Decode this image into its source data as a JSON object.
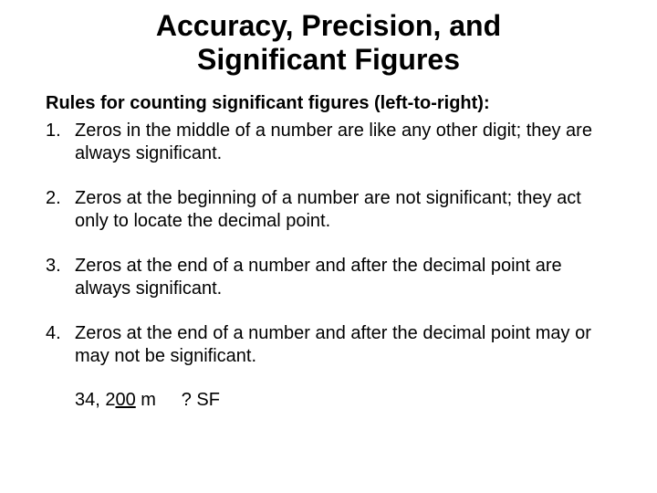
{
  "title_line1": "Accuracy, Precision, and",
  "title_line2": "Significant Figures",
  "subtitle": "Rules for counting significant figures (left-to-right):",
  "rules": [
    {
      "num": "1.",
      "text": "Zeros in the middle of a number are like any other digit; they are always significant."
    },
    {
      "num": "2.",
      "text": "Zeros at the beginning of a number are not significant; they act only to locate the decimal point."
    },
    {
      "num": "3.",
      "text": "Zeros at the end of a number and after the decimal point are always significant."
    },
    {
      "num": "4.",
      "text": "Zeros at the end of a number and after the decimal point may or may not be significant."
    }
  ],
  "example": {
    "prefix": "34, 2",
    "underlined": "00",
    "suffix": " m",
    "question": "? SF"
  },
  "colors": {
    "background": "#ffffff",
    "text": "#000000"
  },
  "fonts": {
    "title_size": 32,
    "body_size": 20,
    "family": "Arial"
  }
}
